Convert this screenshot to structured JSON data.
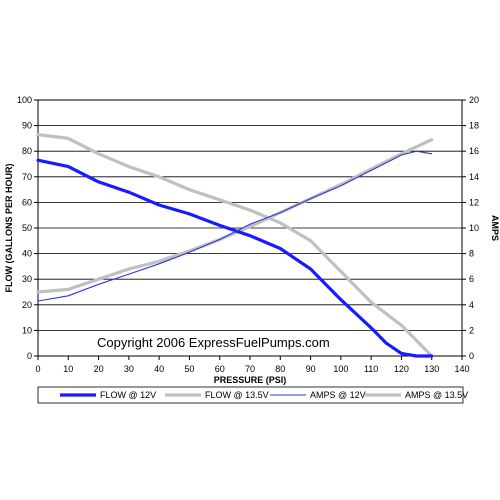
{
  "copyright_text": "Copyright 2006 ExpressFuelPumps.com",
  "colors": {
    "flow_12v": "#1a1aff",
    "flow_135v": "#c0c0c0",
    "amps_12v": "#2a3adf",
    "amps_135v": "#c0c0c0",
    "grid": "#000000",
    "axis": "#000000"
  },
  "chart_data": {
    "type": "line",
    "xlabel": "PRESSURE (PSI)",
    "ylabel": "FLOW (GALLONS PER HOUR)",
    "y2label": "AMPS",
    "xlim": [
      0,
      140
    ],
    "ylim": [
      0,
      100
    ],
    "y2lim": [
      0,
      20
    ],
    "x_ticks": [
      "0",
      "10",
      "20",
      "30",
      "40",
      "50",
      "60",
      "70",
      "80",
      "90",
      "100",
      "110",
      "120",
      "130",
      "140"
    ],
    "y_ticks": [
      "0",
      "10",
      "20",
      "30",
      "40",
      "50",
      "60",
      "70",
      "80",
      "90",
      "100"
    ],
    "y2_ticks": [
      "0",
      "2",
      "4",
      "6",
      "8",
      "10",
      "12",
      "14",
      "16",
      "18",
      "20"
    ],
    "grid": "horizontal",
    "legend_position": "bottom",
    "series": [
      {
        "name": "FLOW @ 12V",
        "axis": "left",
        "style": "thick",
        "x": [
          0,
          10,
          20,
          30,
          40,
          50,
          60,
          70,
          80,
          90,
          100,
          110,
          115,
          120,
          125,
          130
        ],
        "y": [
          76.5,
          74,
          68,
          64,
          59,
          55.5,
          51,
          47,
          42,
          34,
          22,
          11,
          5,
          1,
          0,
          0
        ]
      },
      {
        "name": "FLOW @ 13.5V",
        "axis": "left",
        "style": "thick",
        "x": [
          0,
          10,
          20,
          30,
          40,
          50,
          60,
          70,
          80,
          90,
          100,
          110,
          120,
          125,
          130
        ],
        "y": [
          86.5,
          85,
          79,
          74,
          70,
          65,
          61,
          57,
          52,
          45,
          33,
          21,
          12,
          6,
          0
        ]
      },
      {
        "name": "AMPS @ 12V",
        "axis": "right",
        "style": "thin",
        "x": [
          0,
          10,
          20,
          30,
          40,
          50,
          60,
          70,
          80,
          90,
          100,
          110,
          120,
          125,
          130
        ],
        "y": [
          4.3,
          4.7,
          5.6,
          6.4,
          7.2,
          8.1,
          9.1,
          10.3,
          11.2,
          12.3,
          13.3,
          14.5,
          15.7,
          16,
          15.8
        ]
      },
      {
        "name": "AMPS @ 13.5V",
        "axis": "right",
        "style": "thick",
        "x": [
          0,
          10,
          20,
          30,
          40,
          50,
          60,
          70,
          80,
          90,
          100,
          110,
          120,
          130
        ],
        "y": [
          5,
          5.2,
          6,
          6.8,
          7.4,
          8.2,
          9.1,
          10.1,
          11.2,
          12.3,
          13.4,
          14.6,
          15.8,
          16.9
        ]
      }
    ]
  }
}
